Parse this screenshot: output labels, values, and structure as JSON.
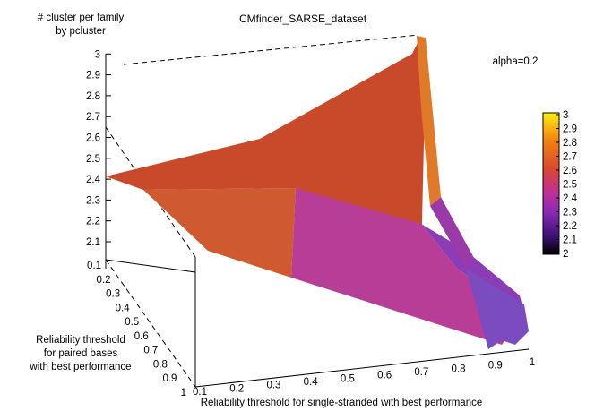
{
  "chart_data": {
    "type": "surface3d",
    "title": "CMfinder_SARSE_dataset",
    "annotation": "alpha=0.2",
    "zlabel": [
      "# cluster per family",
      "by pcluster"
    ],
    "xlabel": [
      "Reliability threshold",
      "for paired bases",
      "with best performance"
    ],
    "ylabel": "Reliability threshold for single-stranded with best performance",
    "x_ticks": [
      "0.1",
      "0.2",
      "0.3",
      "0.4",
      "0.5",
      "0.6",
      "0.7",
      "0.8",
      "0.9",
      "1"
    ],
    "y_ticks": [
      "0.1",
      "0.2",
      "0.3",
      "0.4",
      "0.5",
      "0.6",
      "0.7",
      "0.8",
      "0.9",
      "1"
    ],
    "z_ticks": [
      "2.1",
      "2.2",
      "2.3",
      "2.4",
      "2.5",
      "2.6",
      "2.7",
      "2.8",
      "2.9",
      "3"
    ],
    "z_range": [
      2.0,
      3.0
    ],
    "colorbar": {
      "ticks": [
        "2",
        "2.1",
        "2.2",
        "2.3",
        "2.4",
        "2.5",
        "2.6",
        "2.7",
        "2.8",
        "2.9",
        "3"
      ],
      "range": [
        2.0,
        3.0
      ]
    },
    "surface_samples": [
      {
        "paired": 0.1,
        "single": 0.1,
        "value": 2.4
      },
      {
        "paired": 0.1,
        "single": 0.5,
        "value": 2.5
      },
      {
        "paired": 0.1,
        "single": 1.0,
        "value": 3.0
      },
      {
        "paired": 0.5,
        "single": 0.1,
        "value": 2.4
      },
      {
        "paired": 0.5,
        "single": 0.5,
        "value": 2.35
      },
      {
        "paired": 0.5,
        "single": 1.0,
        "value": 2.3
      },
      {
        "paired": 1.0,
        "single": 0.1,
        "value": 2.4
      },
      {
        "paired": 1.0,
        "single": 0.6,
        "value": 2.25
      },
      {
        "paired": 1.0,
        "single": 1.0,
        "value": 2.1
      }
    ]
  }
}
